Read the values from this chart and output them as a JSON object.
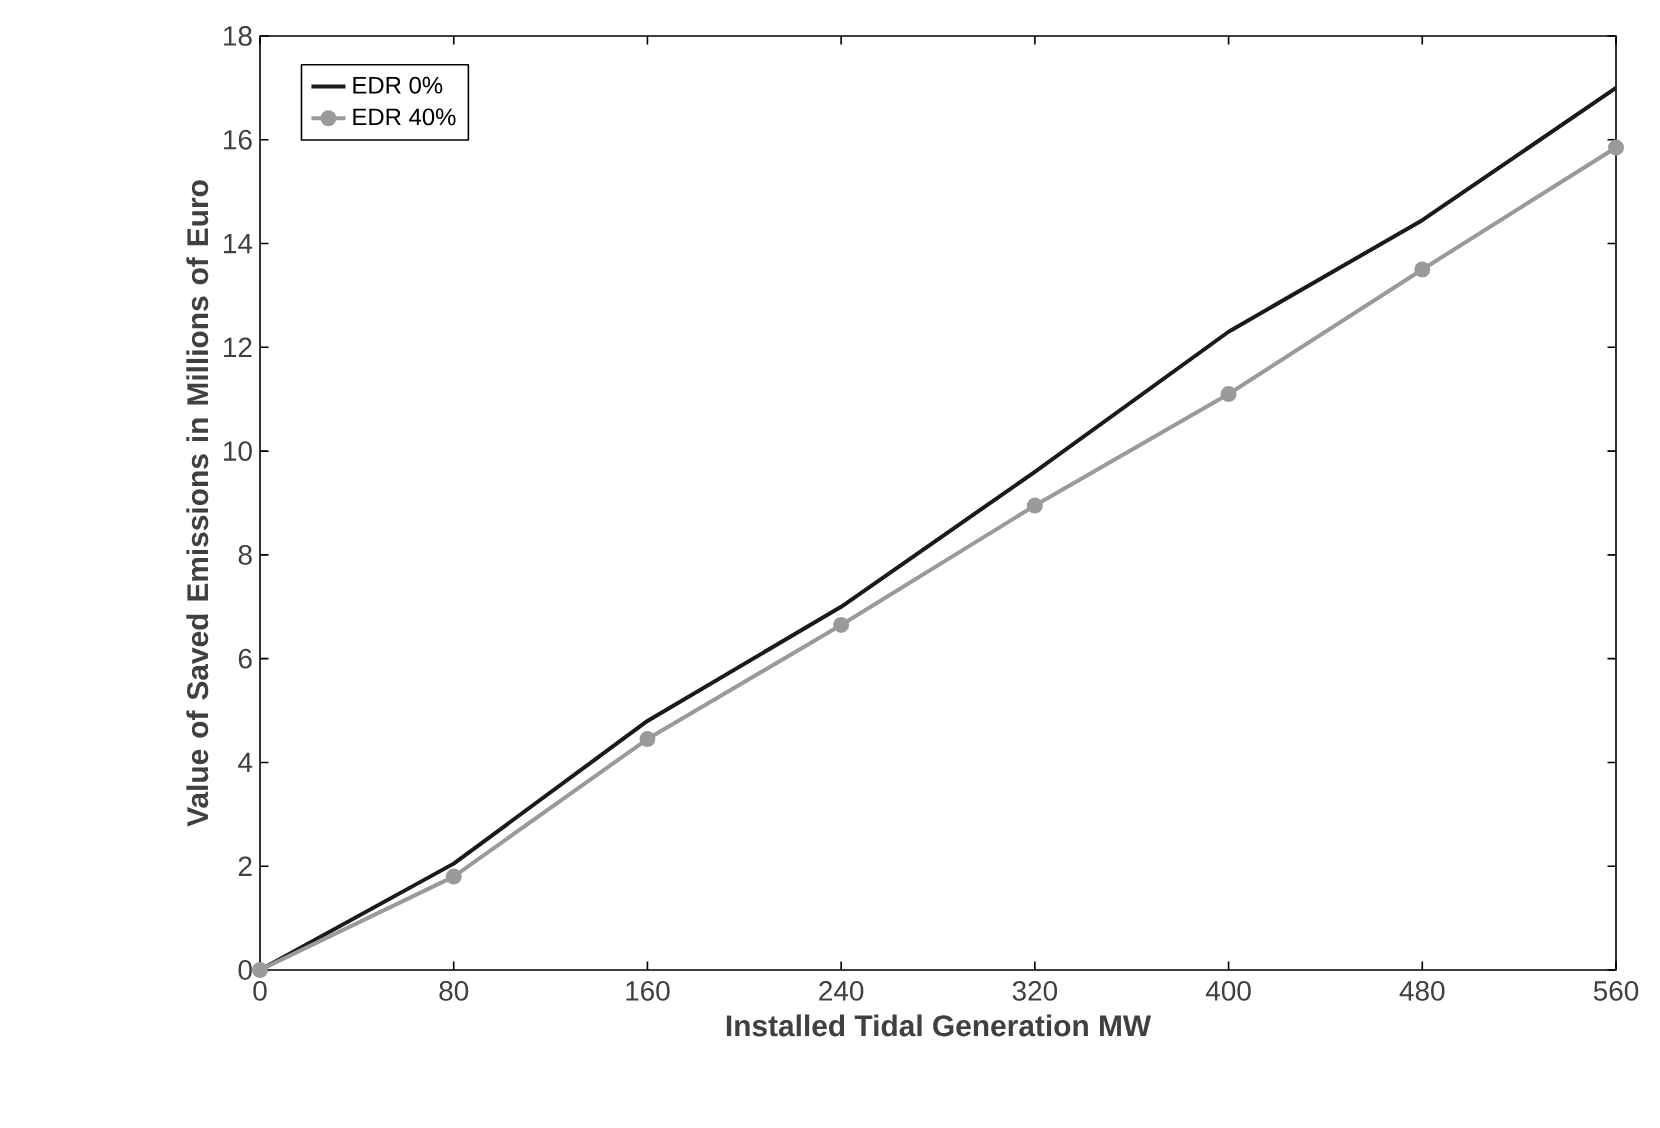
{
  "chart_data": {
    "type": "line",
    "xlabel": "Installed Tidal Generation MW",
    "ylabel": "Value of Saved Emissions in Millions of Euro",
    "x": [
      0,
      80,
      160,
      240,
      320,
      400,
      480,
      560
    ],
    "series": [
      {
        "name": "EDR 0%",
        "color": "#1a1a1a",
        "marker": "none",
        "values": [
          0,
          2.05,
          4.8,
          7.0,
          9.6,
          12.3,
          14.45,
          17.0
        ]
      },
      {
        "name": "EDR 40%",
        "color": "#9a9a9a",
        "marker": "circle",
        "values": [
          0,
          1.8,
          4.45,
          6.65,
          8.95,
          11.1,
          13.5,
          15.85
        ]
      }
    ],
    "xlim": [
      0,
      560
    ],
    "xticks": [
      0,
      80,
      160,
      240,
      320,
      400,
      480,
      560
    ],
    "ylim": [
      0,
      18
    ],
    "yticks": [
      0,
      2,
      4,
      6,
      8,
      10,
      12,
      14,
      16,
      18
    ],
    "grid": false,
    "legend": "top left",
    "line_style": "solid"
  }
}
